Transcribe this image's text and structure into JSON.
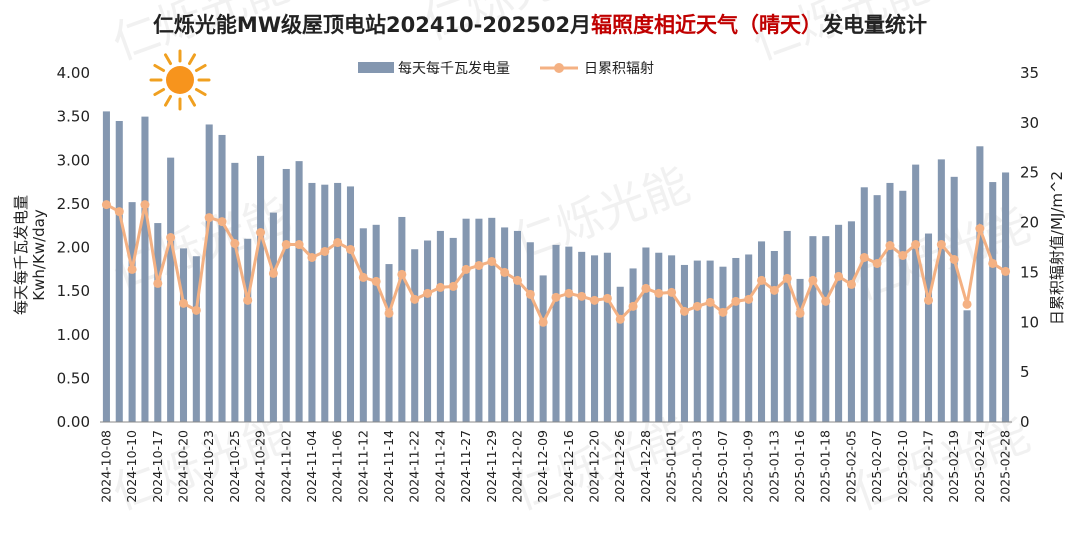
{
  "chart_data": {
    "type": "bar+line",
    "title_part1": "仁烁光能MW级屋顶电站202410-202502月",
    "title_part2": "辐照度相近天气（晴天）",
    "title_part3": "发电量统计",
    "title_color_main": "#222222",
    "title_color_highlight": "#c00000",
    "watermark": "仁烁光能",
    "left_axis_label_line1": "每天每千瓦发电量",
    "left_axis_label_line2": "Kwh/Kw/day",
    "right_axis_label": "日累积辐射值/MJ/m^2",
    "ylim_left": [
      0,
      4
    ],
    "ylim_right": [
      0,
      35
    ],
    "y_left_ticks": [
      "0.00",
      "0.50",
      "1.00",
      "1.50",
      "2.00",
      "2.50",
      "3.00",
      "3.50",
      "4.00"
    ],
    "y_right_ticks": [
      "0",
      "5",
      "10",
      "15",
      "20",
      "25",
      "30",
      "35"
    ],
    "bar_color": "#8497b0",
    "line_color": "#f4b183",
    "grid": false,
    "legend_position": "top",
    "series": [
      {
        "name": "每天每千瓦发电量",
        "type": "bar",
        "axis": "left",
        "values": [
          3.56,
          3.45,
          2.52,
          3.5,
          2.28,
          3.03,
          1.99,
          1.9,
          3.41,
          3.29,
          2.97,
          2.1,
          3.05,
          2.4,
          2.9,
          2.99,
          2.74,
          2.72,
          2.74,
          2.7,
          2.22,
          2.26,
          1.81,
          2.35,
          1.98,
          2.08,
          2.19,
          2.11,
          2.33,
          2.33,
          2.34,
          2.23,
          2.19,
          2.06,
          1.68,
          2.03,
          2.01,
          1.95,
          1.91,
          1.94,
          1.55,
          1.76,
          2.0,
          1.94,
          1.91,
          1.8,
          1.85,
          1.85,
          1.78,
          1.88,
          1.92,
          2.07,
          1.96,
          2.19,
          1.64,
          2.13,
          2.13,
          2.26,
          2.3,
          2.69,
          2.6,
          2.74,
          2.65,
          2.95,
          2.16,
          3.01,
          2.81,
          1.28,
          3.16,
          2.75,
          2.86
        ]
      },
      {
        "name": "日累积辐射",
        "type": "line",
        "axis": "right",
        "values": [
          21.8,
          21.1,
          15.3,
          21.8,
          13.9,
          18.5,
          11.9,
          11.2,
          20.5,
          20.1,
          17.9,
          12.2,
          19.0,
          14.9,
          17.8,
          17.8,
          16.5,
          17.1,
          18.0,
          17.3,
          14.5,
          14.1,
          10.9,
          14.8,
          12.3,
          12.9,
          13.5,
          13.6,
          15.3,
          15.7,
          16.1,
          15.0,
          14.2,
          12.8,
          10.0,
          12.5,
          12.9,
          12.6,
          12.2,
          12.4,
          10.3,
          11.6,
          13.4,
          12.9,
          13.0,
          11.1,
          11.6,
          12.0,
          11.0,
          12.1,
          12.3,
          14.2,
          13.2,
          14.4,
          10.9,
          14.2,
          12.1,
          14.6,
          13.8,
          16.5,
          15.9,
          17.7,
          16.7,
          17.8,
          12.2,
          17.8,
          16.3,
          11.8,
          19.4,
          15.9,
          15.1
        ]
      }
    ],
    "x_tick_labels": [
      "2024-10-08",
      "2024-10-10",
      "2024-10-17",
      "2024-10-20",
      "2024-10-23",
      "2024-10-25",
      "2024-10-29",
      "2024-11-02",
      "2024-11-04",
      "2024-11-06",
      "2024-11-12",
      "2024-11-14",
      "2024-11-22",
      "2024-11-24",
      "2024-11-27",
      "2024-11-29",
      "2024-12-02",
      "2024-12-09",
      "2024-12-16",
      "2024-12-20",
      "2024-12-26",
      "2024-12-28",
      "2025-01-01",
      "2025-01-03",
      "2025-01-07",
      "2025-01-09",
      "2025-01-13",
      "2025-01-16",
      "2025-01-18",
      "2025-02-05",
      "2025-02-07",
      "2025-02-10",
      "2025-02-17",
      "2025-02-19",
      "2025-02-24",
      "2025-02-28"
    ]
  },
  "decor": {
    "sun_icon": "sun-icon"
  }
}
